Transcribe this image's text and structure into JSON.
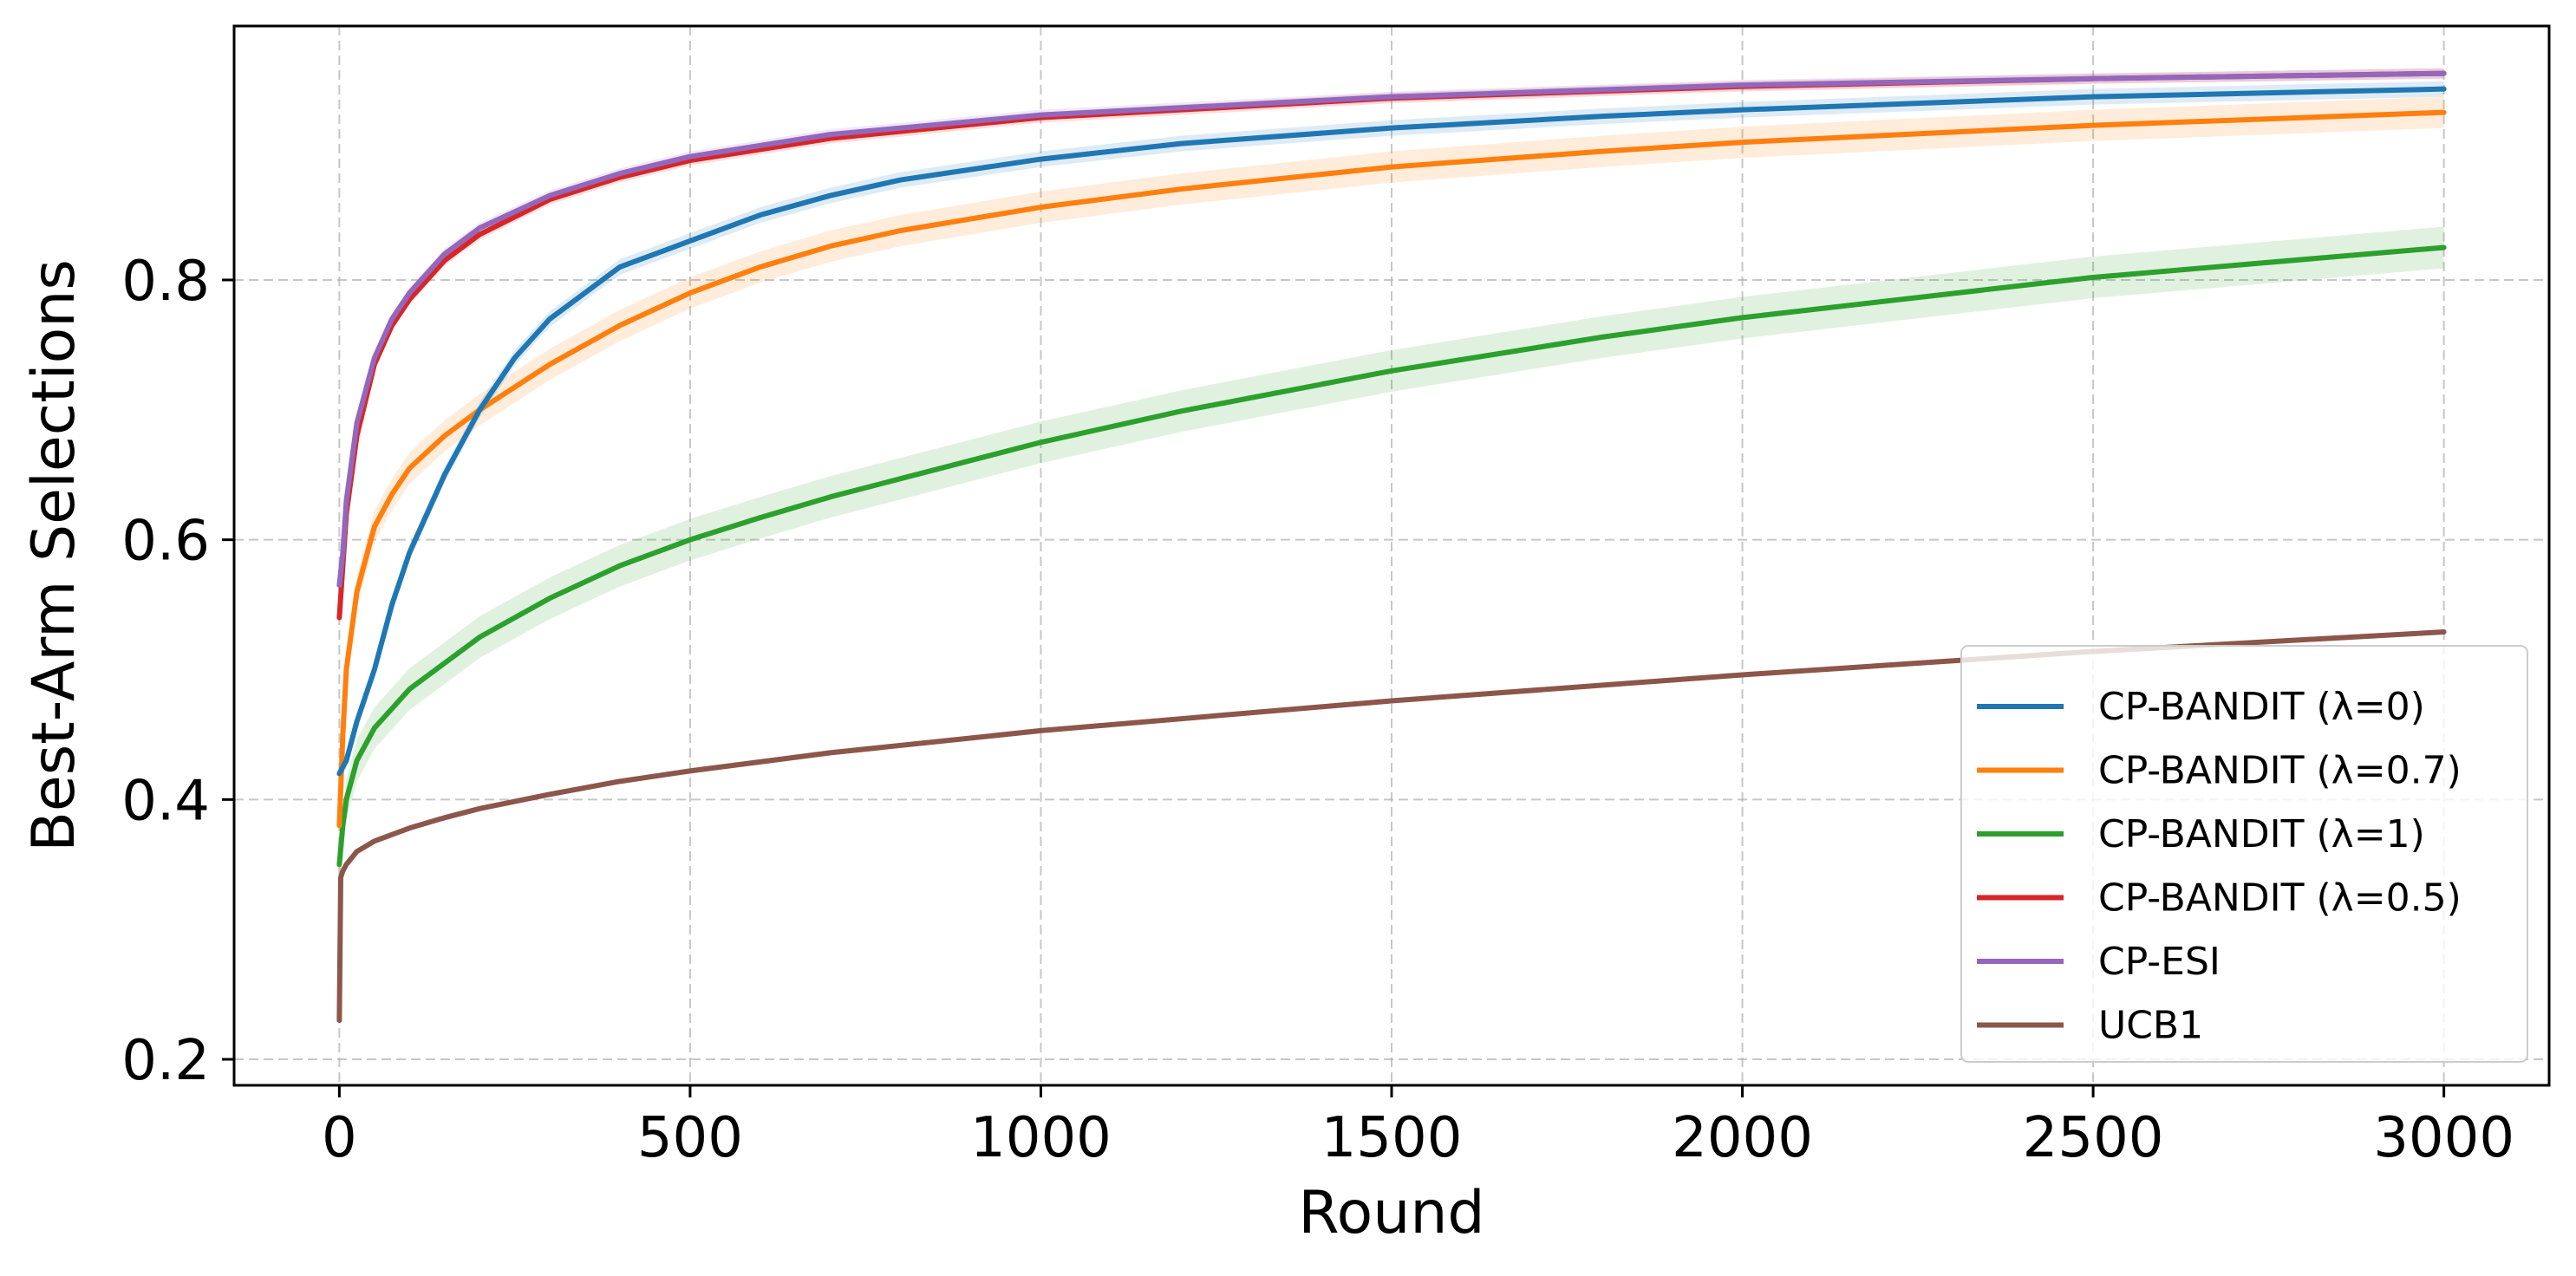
{
  "chart_data": {
    "type": "line",
    "title": "",
    "xlabel": "Round",
    "ylabel": "Best-Arm Selections",
    "xlim": [
      -150,
      3150
    ],
    "ylim": [
      0.18,
      0.9955
    ],
    "xticks": [
      0,
      500,
      1000,
      1500,
      2000,
      2500,
      3000
    ],
    "xtick_labels": [
      "0",
      "500",
      "1000",
      "1500",
      "2000",
      "2500",
      "3000"
    ],
    "yticks": [
      0.2,
      0.4,
      0.6,
      0.8
    ],
    "ytick_labels": [
      "0.2",
      "0.4",
      "0.6",
      "0.8"
    ],
    "grid": true,
    "legend_position": "lower-right",
    "series": [
      {
        "name": "CP-BANDIT (λ=0)",
        "color": "#1f77b4",
        "x": [
          0,
          10,
          25,
          50,
          75,
          100,
          150,
          200,
          250,
          300,
          400,
          500,
          600,
          700,
          800,
          1000,
          1200,
          1500,
          1800,
          2000,
          2500,
          3000
        ],
        "y": [
          0.42,
          0.43,
          0.46,
          0.5,
          0.55,
          0.59,
          0.65,
          0.7,
          0.74,
          0.77,
          0.81,
          0.83,
          0.85,
          0.865,
          0.877,
          0.893,
          0.905,
          0.917,
          0.926,
          0.931,
          0.941,
          0.947
        ],
        "band": 0.006
      },
      {
        "name": "CP-BANDIT (λ=0.7)",
        "color": "#ff7f0e",
        "x": [
          0,
          5,
          10,
          25,
          50,
          75,
          100,
          150,
          200,
          300,
          400,
          500,
          600,
          700,
          800,
          1000,
          1200,
          1500,
          1800,
          2000,
          2500,
          3000
        ],
        "y": [
          0.38,
          0.45,
          0.5,
          0.56,
          0.61,
          0.635,
          0.655,
          0.68,
          0.7,
          0.735,
          0.765,
          0.79,
          0.81,
          0.826,
          0.838,
          0.856,
          0.87,
          0.887,
          0.899,
          0.906,
          0.919,
          0.929
        ],
        "band": 0.012
      },
      {
        "name": "CP-BANDIT (λ=1)",
        "color": "#2ca02c",
        "x": [
          0,
          5,
          10,
          25,
          50,
          75,
          100,
          150,
          200,
          300,
          400,
          500,
          600,
          700,
          800,
          1000,
          1200,
          1500,
          1800,
          2000,
          2500,
          3000
        ],
        "y": [
          0.35,
          0.38,
          0.4,
          0.43,
          0.455,
          0.47,
          0.485,
          0.505,
          0.525,
          0.555,
          0.58,
          0.6,
          0.617,
          0.633,
          0.647,
          0.675,
          0.699,
          0.73,
          0.756,
          0.771,
          0.802,
          0.825
        ],
        "band": 0.016
      },
      {
        "name": "CP-BANDIT (λ=0.5)",
        "color": "#d62728",
        "x": [
          0,
          5,
          10,
          25,
          50,
          75,
          100,
          150,
          200,
          300,
          400,
          500,
          700,
          1000,
          1500,
          2000,
          2500,
          3000
        ],
        "y": [
          0.54,
          0.58,
          0.62,
          0.68,
          0.735,
          0.765,
          0.785,
          0.815,
          0.835,
          0.862,
          0.879,
          0.892,
          0.909,
          0.925,
          0.94,
          0.949,
          0.955,
          0.959
        ],
        "band": 0.004
      },
      {
        "name": "CP-ESI",
        "color": "#9467bd",
        "x": [
          0,
          5,
          10,
          25,
          50,
          75,
          100,
          150,
          200,
          300,
          400,
          500,
          700,
          1000,
          1500,
          2000,
          2500,
          3000
        ],
        "y": [
          0.565,
          0.59,
          0.63,
          0.69,
          0.74,
          0.77,
          0.79,
          0.82,
          0.84,
          0.865,
          0.882,
          0.895,
          0.912,
          0.927,
          0.941,
          0.95,
          0.955,
          0.959
        ],
        "band": 0.004
      },
      {
        "name": "UCB1",
        "color": "#8c564b",
        "x": [
          0,
          2,
          5,
          10,
          25,
          50,
          100,
          150,
          200,
          300,
          400,
          500,
          700,
          1000,
          1500,
          2000,
          2500,
          3000
        ],
        "y": [
          0.23,
          0.34,
          0.345,
          0.35,
          0.36,
          0.368,
          0.378,
          0.386,
          0.393,
          0.404,
          0.414,
          0.422,
          0.436,
          0.453,
          0.476,
          0.496,
          0.514,
          0.529
        ],
        "band": 0
      }
    ]
  }
}
